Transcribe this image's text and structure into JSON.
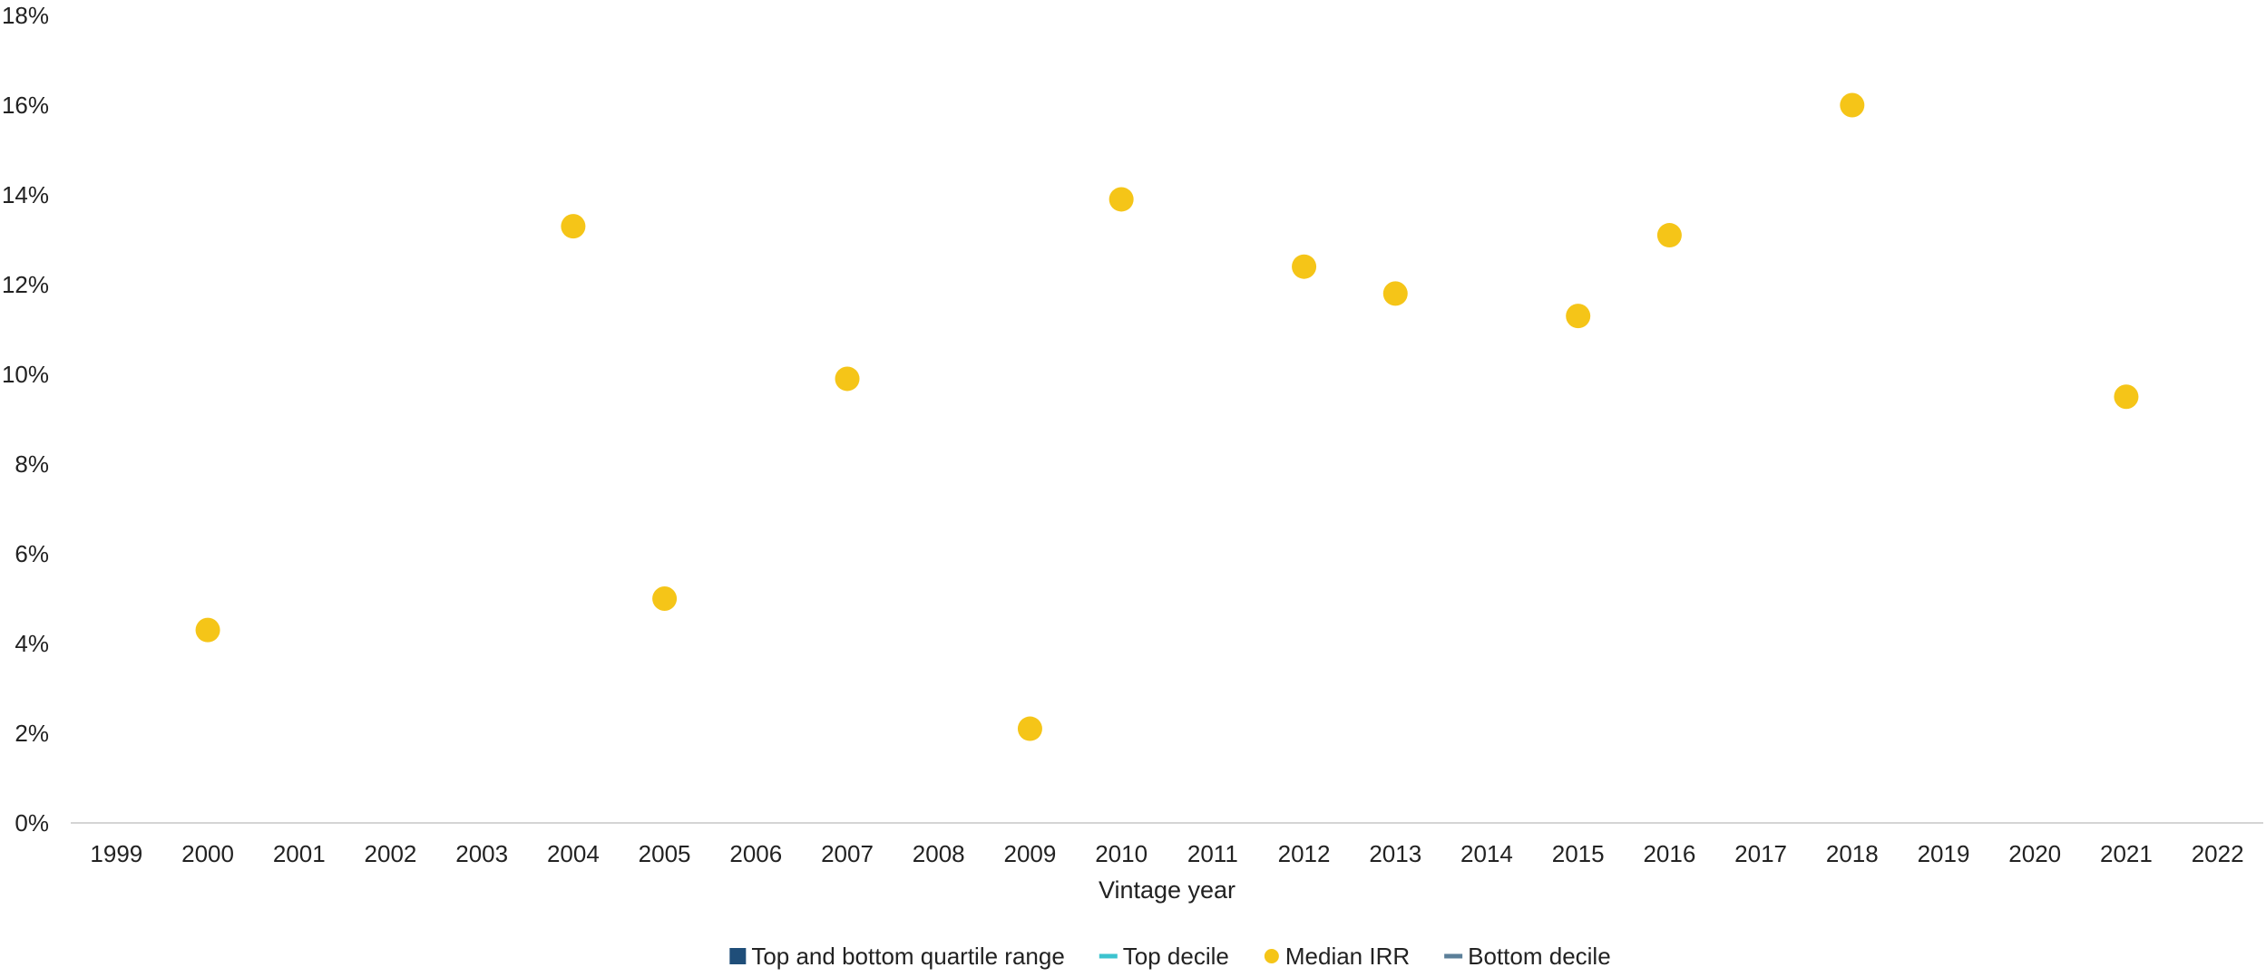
{
  "chart_data": {
    "type": "scatter",
    "title": "",
    "xlabel": "Vintage year",
    "ylabel": "",
    "categories": [
      "1999",
      "2000",
      "2001",
      "2002",
      "2003",
      "2004",
      "2005",
      "2006",
      "2007",
      "2008",
      "2009",
      "2010",
      "2011",
      "2012",
      "2013",
      "2014",
      "2015",
      "2016",
      "2017",
      "2018",
      "2019",
      "2020",
      "2021",
      "2022"
    ],
    "y_ticks": [
      "0%",
      "2%",
      "4%",
      "6%",
      "8%",
      "10%",
      "12%",
      "14%",
      "16%",
      "18%"
    ],
    "ylim": [
      0,
      18
    ],
    "grid": false,
    "legend_position": "bottom",
    "series": [
      {
        "name": "Top and bottom quartile range",
        "marker": "square",
        "color": "#1f4e79",
        "points": []
      },
      {
        "name": "Top decile",
        "marker": "line",
        "color": "#3cc3cf",
        "points": []
      },
      {
        "name": "Median IRR",
        "marker": "circle",
        "color": "#f5c518",
        "points": [
          {
            "x": "2000",
            "y": 4.3
          },
          {
            "x": "2004",
            "y": 13.3
          },
          {
            "x": "2005",
            "y": 5.0
          },
          {
            "x": "2007",
            "y": 9.9
          },
          {
            "x": "2009",
            "y": 2.1
          },
          {
            "x": "2010",
            "y": 13.9
          },
          {
            "x": "2012",
            "y": 12.4
          },
          {
            "x": "2013",
            "y": 11.8
          },
          {
            "x": "2015",
            "y": 11.3
          },
          {
            "x": "2016",
            "y": 13.1
          },
          {
            "x": "2018",
            "y": 16.0
          },
          {
            "x": "2021",
            "y": 9.5
          }
        ]
      },
      {
        "name": "Bottom decile",
        "marker": "line",
        "color": "#5b7f99",
        "points": []
      }
    ]
  }
}
